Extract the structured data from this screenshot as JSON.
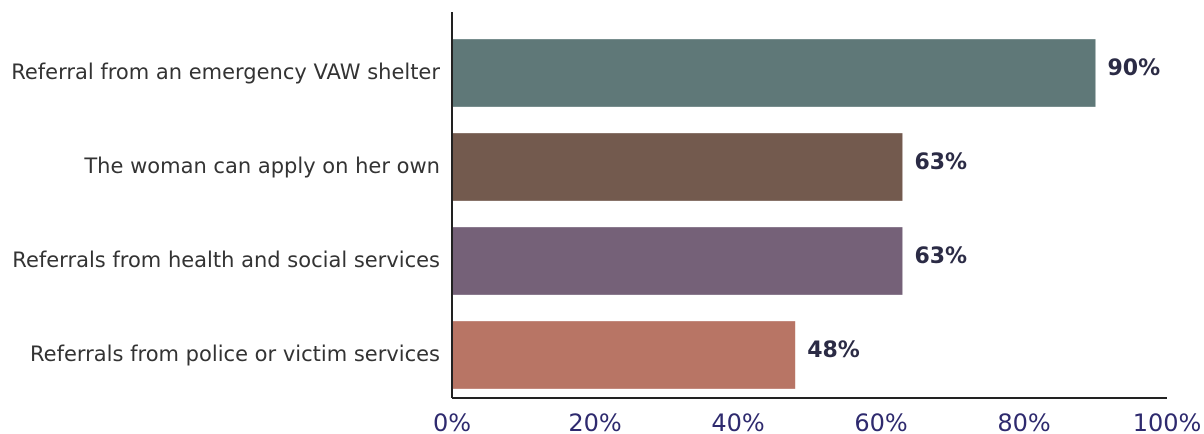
{
  "chart_data": {
    "type": "bar",
    "orientation": "horizontal",
    "categories": [
      "Referral from an emergency VAW shelter",
      "The woman can apply on her own",
      "Referrals from health and social services",
      "Referrals from police or victim services"
    ],
    "values": [
      90,
      63,
      63,
      48
    ],
    "value_labels": [
      "90%",
      "63%",
      "63%",
      "48%"
    ],
    "colors": [
      "#5f7878",
      "#735a4e",
      "#756178",
      "#b87565"
    ],
    "xlim": [
      0,
      100
    ],
    "xticks": [
      {
        "value": 0,
        "label": "0%"
      },
      {
        "value": 20,
        "label": "20%"
      },
      {
        "value": 40,
        "label": "40%"
      },
      {
        "value": 60,
        "label": "60%"
      },
      {
        "value": 80,
        "label": "80%"
      },
      {
        "value": 100,
        "label": "100%"
      }
    ],
    "grid": false
  }
}
